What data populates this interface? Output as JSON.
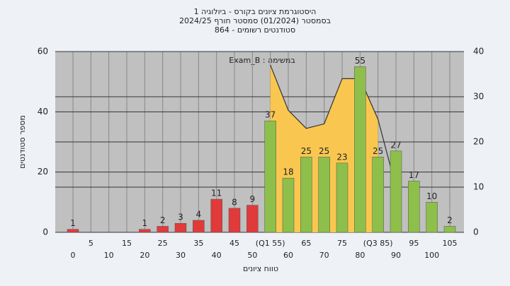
{
  "chart_data": {
    "type": "bar",
    "title_lines": [
      "היסטוגרמת ציונים בקורס - ביולוגיה 1",
      "בסמסטר  (01/2024)  סמסטר חורף 2024/25",
      "סטודנטים רשומים - 864"
    ],
    "annotation": "Exam_B : במשימה",
    "x_label": "טווח ציונים",
    "y_label": "מספר סטודנטים",
    "categories": [
      "0",
      "5",
      "10",
      "15",
      "20",
      "25",
      "30",
      "35",
      "40",
      "45",
      "50",
      "(Q1 55)",
      "60",
      "65",
      "70",
      "75",
      "80",
      "(Q3 85)",
      "90",
      "95",
      "100",
      "105"
    ],
    "values": [
      1,
      0,
      0,
      0,
      1,
      2,
      3,
      4,
      11,
      8,
      9,
      37,
      18,
      25,
      25,
      23,
      55,
      25,
      27,
      17,
      10,
      2
    ],
    "colors": [
      "#e03a3a",
      "#e03a3a",
      "#e03a3a",
      "#e03a3a",
      "#e03a3a",
      "#e03a3a",
      "#e03a3a",
      "#e03a3a",
      "#e03a3a",
      "#e03a3a",
      "#e03a3a",
      "#8dbf4a",
      "#8dbf4a",
      "#8dbf4a",
      "#8dbf4a",
      "#8dbf4a",
      "#8dbf4a",
      "#8dbf4a",
      "#8dbf4a",
      "#8dbf4a",
      "#8dbf4a",
      "#8dbf4a"
    ],
    "area": {
      "axis": "y2",
      "color": "#f9c74f",
      "values": [
        null,
        null,
        null,
        null,
        null,
        null,
        null,
        null,
        null,
        null,
        null,
        37,
        27,
        23,
        24,
        34,
        34,
        25,
        null,
        null,
        null,
        null
      ]
    },
    "line": {
      "axis": "y2",
      "color": "#333333",
      "values": [
        null,
        null,
        null,
        null,
        null,
        null,
        null,
        null,
        null,
        null,
        null,
        37,
        27,
        23,
        24,
        34,
        34,
        25,
        10,
        null,
        null,
        null
      ]
    },
    "ylim": [
      0,
      60
    ],
    "yticks": [
      0,
      20,
      40,
      60
    ],
    "y2lim": [
      0,
      40
    ],
    "y2ticks": [
      0,
      10,
      20,
      30,
      40
    ],
    "grid": true
  }
}
